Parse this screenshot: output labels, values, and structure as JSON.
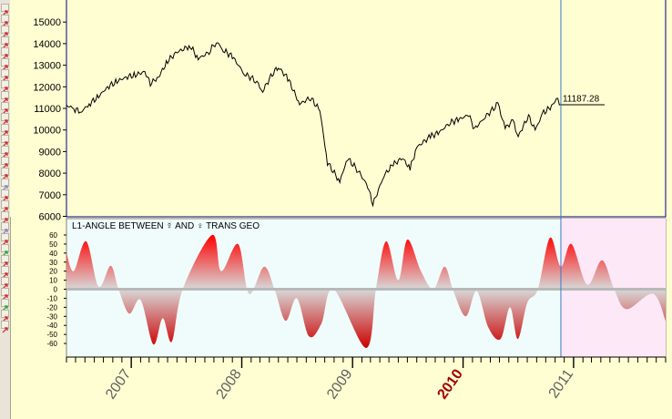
{
  "toolbar": {
    "buttons": [
      {
        "icon": "red-arrow-icon"
      },
      {
        "icon": "red-arrow-icon"
      },
      {
        "icon": "red-arrow-icon"
      },
      {
        "icon": "red-arrow-icon"
      },
      {
        "icon": "red-arrow-icon"
      },
      {
        "icon": "red-arrow-icon"
      },
      {
        "icon": "red-arrow-icon"
      },
      {
        "icon": "red-arrow-icon"
      },
      {
        "icon": "red-arrow-icon"
      },
      {
        "icon": "red-arrow-icon"
      },
      {
        "icon": "red-arrow-icon"
      },
      {
        "icon": "red-lines-icon"
      },
      {
        "icon": "red-lines-icon"
      },
      {
        "icon": "red-arrow-icon"
      },
      {
        "icon": "red-arrow-icon"
      },
      {
        "icon": "red-arrow-icon"
      },
      {
        "icon": "circle-c-icon"
      },
      {
        "icon": "red-arrow-icon"
      },
      {
        "icon": "red-arrow-icon"
      },
      {
        "icon": "red-lines-icon"
      },
      {
        "icon": "circle-icon"
      },
      {
        "icon": "red-lines-icon"
      },
      {
        "icon": "green-icon"
      },
      {
        "icon": "red-arrow-icon"
      },
      {
        "icon": "red-arrow-icon"
      },
      {
        "icon": "red-arrow-icon"
      },
      {
        "icon": "red-arrow-icon"
      },
      {
        "icon": "green-icon"
      },
      {
        "icon": "red-arrow-icon"
      },
      {
        "icon": "red-arrow-icon"
      }
    ]
  },
  "colors": {
    "background": "#fffed2",
    "price_line": "#000000",
    "panel_border": "#000080",
    "indicator_bg": "#f0fcfc",
    "future_bg": "#fde8f8",
    "positive_fill": "#e80000",
    "negative_fill": "#c00000",
    "cursor_line": "#3a78c8",
    "year_label": "#606060",
    "year_label_highlight": "#a00000"
  },
  "chart_data": [
    {
      "type": "line",
      "name": "price",
      "ylim": [
        6000,
        16000
      ],
      "ytick_labels": [
        "6000",
        "7000",
        "8000",
        "9000",
        "10000",
        "11000",
        "12000",
        "13000",
        "14000",
        "15000"
      ],
      "series": [
        {
          "values_by_date": [
            [
              "2006-06-01",
              11150
            ],
            [
              "2006-06-25",
              10980
            ],
            [
              "2006-07-20",
              10850
            ],
            [
              "2006-08-15",
              11200
            ],
            [
              "2006-09-15",
              11550
            ],
            [
              "2006-10-15",
              12000
            ],
            [
              "2006-11-15",
              12250
            ],
            [
              "2006-12-15",
              12450
            ],
            [
              "2007-01-15",
              12550
            ],
            [
              "2007-02-15",
              12700
            ],
            [
              "2007-03-05",
              12150
            ],
            [
              "2007-04-01",
              12450
            ],
            [
              "2007-05-01",
              13200
            ],
            [
              "2007-06-01",
              13600
            ],
            [
              "2007-07-15",
              13900
            ],
            [
              "2007-08-10",
              13300
            ],
            [
              "2007-09-15",
              13600
            ],
            [
              "2007-10-09",
              14100
            ],
            [
              "2007-11-01",
              13700
            ],
            [
              "2007-12-01",
              13400
            ],
            [
              "2008-01-10",
              12600
            ],
            [
              "2008-02-15",
              12300
            ],
            [
              "2008-03-10",
              11800
            ],
            [
              "2008-04-15",
              12700
            ],
            [
              "2008-05-01",
              12900
            ],
            [
              "2008-06-01",
              12400
            ],
            [
              "2008-07-10",
              11200
            ],
            [
              "2008-08-15",
              11500
            ],
            [
              "2008-09-15",
              10900
            ],
            [
              "2008-10-10",
              8500
            ],
            [
              "2008-11-20",
              7600
            ],
            [
              "2008-12-15",
              8700
            ],
            [
              "2009-01-20",
              8100
            ],
            [
              "2009-02-20",
              7400
            ],
            [
              "2009-03-09",
              6550
            ],
            [
              "2009-04-15",
              7900
            ],
            [
              "2009-05-15",
              8400
            ],
            [
              "2009-06-15",
              8700
            ],
            [
              "2009-07-10",
              8200
            ],
            [
              "2009-08-01",
              9200
            ],
            [
              "2009-09-15",
              9700
            ],
            [
              "2009-10-15",
              9900
            ],
            [
              "2009-11-20",
              10350
            ],
            [
              "2009-12-20",
              10500
            ],
            [
              "2010-01-19",
              10700
            ],
            [
              "2010-02-08",
              10050
            ],
            [
              "2010-03-15",
              10600
            ],
            [
              "2010-04-26",
              11200
            ],
            [
              "2010-05-20",
              10100
            ],
            [
              "2010-06-15",
              10400
            ],
            [
              "2010-07-02",
              9700
            ],
            [
              "2010-08-05",
              10650
            ],
            [
              "2010-08-27",
              9980
            ],
            [
              "2010-09-20",
              10750
            ],
            [
              "2010-10-20",
              11100
            ],
            [
              "2010-11-05",
              11420
            ],
            [
              "2010-11-20",
              11187.28
            ]
          ]
        }
      ],
      "last_value_label": "11187.28",
      "cursor_date": "2010-11-20",
      "xlim": [
        "2006-06-01",
        "2011-11-01"
      ]
    },
    {
      "type": "area",
      "name": "indicator",
      "title": "L1-ANGLE BETWEEN ☿ AND ♀ TRANS GEO",
      "ylim": [
        -70,
        60
      ],
      "ytick_labels": [
        "60",
        "50",
        "40",
        "30",
        "20",
        "10",
        "0",
        "-10",
        "-20",
        "-30",
        "-40",
        "-50",
        "-60"
      ],
      "x_tick_labels": [
        "2007",
        "2008",
        "2009",
        "2010",
        "2011"
      ],
      "x_tick_dates": [
        "2007-01-01",
        "2008-01-01",
        "2009-01-01",
        "2010-01-01",
        "2011-01-01"
      ],
      "highlight_x_label": "2010",
      "future_start_date": "2010-11-20",
      "series": [
        {
          "values_by_date": [
            [
              "2006-06-01",
              40
            ],
            [
              "2006-06-25",
              20
            ],
            [
              "2006-08-05",
              53
            ],
            [
              "2006-09-15",
              3
            ],
            [
              "2006-10-25",
              26
            ],
            [
              "2006-11-20",
              0
            ],
            [
              "2006-12-25",
              -27
            ],
            [
              "2007-02-01",
              -12
            ],
            [
              "2007-03-15",
              -61
            ],
            [
              "2007-04-15",
              -32
            ],
            [
              "2007-05-15",
              -58
            ],
            [
              "2007-06-20",
              0
            ],
            [
              "2007-09-25",
              60
            ],
            [
              "2007-10-25",
              20
            ],
            [
              "2007-12-20",
              50
            ],
            [
              "2008-01-25",
              -5
            ],
            [
              "2008-03-15",
              25
            ],
            [
              "2008-04-20",
              -2
            ],
            [
              "2008-05-25",
              -35
            ],
            [
              "2008-07-01",
              -10
            ],
            [
              "2008-08-10",
              -52
            ],
            [
              "2008-09-20",
              -38
            ],
            [
              "2008-10-30",
              0
            ],
            [
              "2009-02-15",
              -65
            ],
            [
              "2009-03-20",
              2
            ],
            [
              "2009-04-22",
              53
            ],
            [
              "2009-06-01",
              10
            ],
            [
              "2009-07-01",
              55
            ],
            [
              "2009-08-15",
              20
            ],
            [
              "2009-09-25",
              0
            ],
            [
              "2009-11-01",
              25
            ],
            [
              "2009-12-01",
              -3
            ],
            [
              "2010-01-10",
              -30
            ],
            [
              "2010-02-15",
              -2
            ],
            [
              "2010-03-25",
              -42
            ],
            [
              "2010-05-05",
              -55
            ],
            [
              "2010-06-05",
              -20
            ],
            [
              "2010-07-01",
              -55
            ],
            [
              "2010-08-01",
              -15
            ],
            [
              "2010-09-05",
              0
            ],
            [
              "2010-10-15",
              57
            ],
            [
              "2010-11-20",
              25
            ],
            [
              "2010-12-25",
              50
            ],
            [
              "2011-02-15",
              5
            ],
            [
              "2011-04-05",
              32
            ],
            [
              "2011-05-15",
              0
            ],
            [
              "2011-06-25",
              -22
            ],
            [
              "2011-09-20",
              -5
            ],
            [
              "2011-11-01",
              -35
            ]
          ]
        }
      ]
    }
  ]
}
